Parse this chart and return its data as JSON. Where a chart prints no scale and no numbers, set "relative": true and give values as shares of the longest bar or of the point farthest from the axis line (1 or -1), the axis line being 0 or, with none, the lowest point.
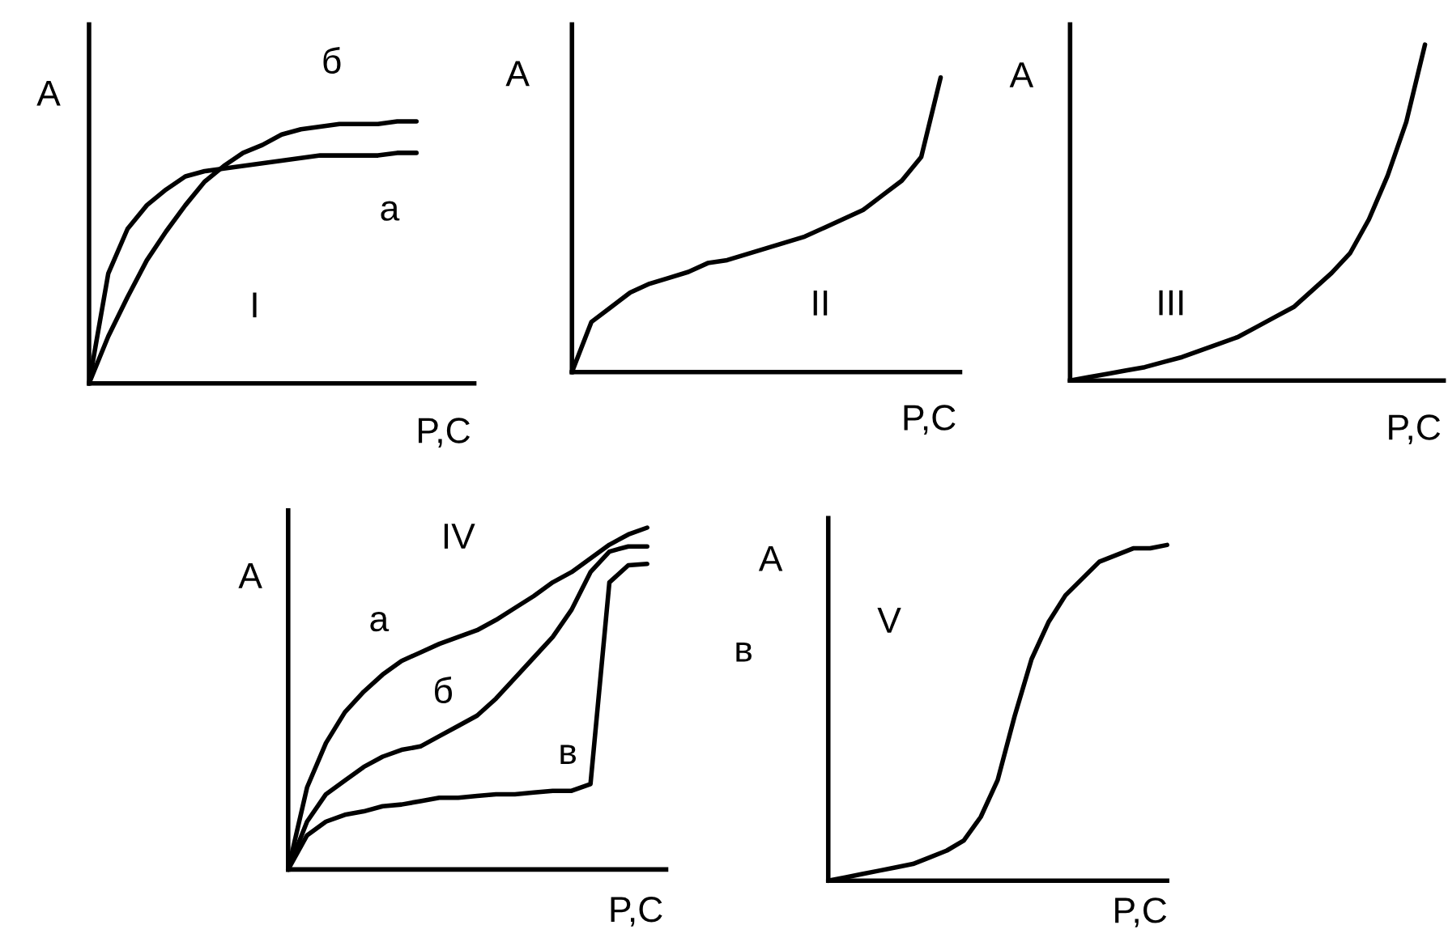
{
  "chart_data": [
    {
      "type": "line",
      "relative": true,
      "xlabel": "P,C",
      "ylabel": "A",
      "annotations": [
        "I"
      ],
      "categories": [
        null,
        null,
        null,
        null,
        null,
        null,
        null,
        null,
        null,
        null,
        null,
        null,
        null,
        null,
        null,
        null,
        null,
        null,
        null,
        null,
        null
      ],
      "series": [
        {
          "name": "а",
          "color": "#000000",
          "values": [
            0,
            0.42,
            0.59,
            0.68,
            0.74,
            0.79,
            0.81,
            0.82,
            0.83,
            0.84,
            0.85,
            0.86,
            0.87,
            0.87,
            0.87,
            0.87,
            0.88,
            0.88,
            null,
            null,
            null
          ]
        },
        {
          "name": "б",
          "color": "#000000",
          "values": [
            0,
            0.18,
            0.33,
            0.47,
            0.58,
            0.68,
            0.77,
            0.83,
            0.88,
            0.91,
            0.95,
            0.97,
            0.98,
            0.99,
            0.99,
            0.99,
            1.0,
            1.0,
            null,
            null,
            null
          ]
        }
      ]
    },
    {
      "type": "line",
      "relative": true,
      "xlabel": "P,C",
      "ylabel": "A",
      "annotations": [
        "II"
      ],
      "categories": [
        null,
        null,
        null,
        null,
        null,
        null,
        null,
        null,
        null,
        null,
        null,
        null,
        null,
        null,
        null,
        null,
        null,
        null,
        null,
        null,
        null
      ],
      "series": [
        {
          "color": "#000000",
          "values": [
            0,
            0.17,
            0.22,
            0.27,
            0.3,
            0.32,
            0.34,
            0.37,
            0.38,
            0.4,
            0.42,
            0.44,
            0.46,
            0.49,
            0.52,
            0.55,
            0.6,
            0.65,
            0.73,
            1.0,
            null
          ]
        }
      ]
    },
    {
      "type": "line",
      "relative": true,
      "xlabel": "P,C",
      "ylabel": "A",
      "annotations": [
        "III"
      ],
      "categories": [
        null,
        null,
        null,
        null,
        null,
        null,
        null,
        null,
        null,
        null,
        null,
        null,
        null,
        null,
        null,
        null,
        null,
        null,
        null,
        null,
        null
      ],
      "series": [
        {
          "color": "#000000",
          "values": [
            0,
            0.01,
            0.02,
            0.03,
            0.04,
            0.055,
            0.07,
            0.09,
            0.11,
            0.13,
            0.16,
            0.19,
            0.22,
            0.27,
            0.32,
            0.38,
            0.48,
            0.61,
            0.77,
            1.0,
            null
          ]
        }
      ]
    },
    {
      "type": "line",
      "relative": true,
      "xlabel": "P,C",
      "ylabel": "A",
      "annotations": [
        "IV"
      ],
      "categories": [
        null,
        null,
        null,
        null,
        null,
        null,
        null,
        null,
        null,
        null,
        null,
        null,
        null,
        null,
        null,
        null,
        null,
        null,
        null,
        null,
        null
      ],
      "series": [
        {
          "name": "а",
          "color": "#000000",
          "values": [
            0,
            0.24,
            0.37,
            0.46,
            0.52,
            0.57,
            0.61,
            0.635,
            0.66,
            0.68,
            0.7,
            0.73,
            0.765,
            0.8,
            0.84,
            0.87,
            0.91,
            0.95,
            0.98,
            1.0,
            null
          ]
        },
        {
          "name": "б",
          "color": "#000000",
          "values": [
            0,
            0.14,
            0.22,
            0.26,
            0.3,
            0.33,
            0.35,
            0.36,
            0.39,
            0.42,
            0.45,
            0.5,
            0.56,
            0.62,
            0.68,
            0.76,
            0.87,
            0.93,
            0.945,
            0.945,
            null
          ]
        },
        {
          "name": "в",
          "color": "#000000",
          "values": [
            0,
            0.1,
            0.14,
            0.16,
            0.17,
            0.185,
            0.19,
            0.2,
            0.21,
            0.21,
            0.215,
            0.22,
            0.22,
            0.225,
            0.23,
            0.23,
            0.25,
            0.84,
            0.89,
            0.894,
            null
          ]
        }
      ]
    },
    {
      "type": "line",
      "relative": true,
      "xlabel": "P,C",
      "ylabel": "A",
      "annotations": [
        "V",
        "в"
      ],
      "categories": [
        null,
        null,
        null,
        null,
        null,
        null,
        null,
        null,
        null,
        null,
        null,
        null,
        null,
        null,
        null,
        null,
        null,
        null,
        null,
        null,
        null
      ],
      "series": [
        {
          "color": "#000000",
          "values": [
            0,
            0.01,
            0.02,
            0.03,
            0.04,
            0.05,
            0.07,
            0.09,
            0.12,
            0.19,
            0.3,
            0.49,
            0.66,
            0.77,
            0.85,
            0.9,
            0.95,
            0.97,
            0.99,
            0.99,
            1.0
          ]
        }
      ]
    }
  ]
}
